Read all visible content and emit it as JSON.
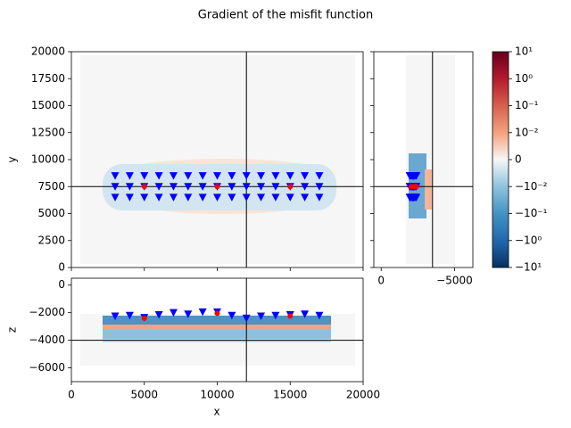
{
  "chart_data": [
    {
      "type": "scatter",
      "title": "Gradient of the misfit function",
      "ylabel": "y",
      "xlim": [
        0,
        20000
      ],
      "ylim": [
        0,
        20000
      ],
      "xticks": [
        0,
        5000,
        10000,
        15000,
        20000
      ],
      "yticks": [
        0,
        2500,
        5000,
        7500,
        10000,
        12500,
        15000,
        17500,
        20000
      ],
      "crosshair": {
        "x": 12000,
        "y": 7500
      },
      "series": [
        {
          "color": "#0000ff",
          "marker": "triangle-down",
          "x": [
            3000,
            4000,
            5000,
            6000,
            7000,
            8000,
            9000,
            10000,
            11000,
            12000,
            13000,
            14000,
            15000,
            16000,
            17000,
            3000,
            4000,
            5000,
            6000,
            7000,
            8000,
            9000,
            10000,
            11000,
            12000,
            13000,
            14000,
            15000,
            16000,
            17000,
            3000,
            4000,
            5000,
            6000,
            7000,
            8000,
            9000,
            10000,
            11000,
            12000,
            13000,
            14000,
            15000,
            16000,
            17000
          ],
          "y": [
            8500,
            8500,
            8500,
            8500,
            8500,
            8500,
            8500,
            8500,
            8500,
            8500,
            8500,
            8500,
            8500,
            8500,
            8500,
            7500,
            7500,
            7500,
            7500,
            7500,
            7500,
            7500,
            7500,
            7500,
            7500,
            7500,
            7500,
            7500,
            7500,
            7500,
            6500,
            6500,
            6500,
            6500,
            6500,
            6500,
            6500,
            6500,
            6500,
            6500,
            6500,
            6500,
            6500,
            6500,
            6500
          ]
        },
        {
          "color": "#ff0000",
          "marker": "circle",
          "x": [
            5000,
            10000,
            15000
          ],
          "y": [
            7500,
            7500,
            7500
          ]
        }
      ]
    },
    {
      "type": "scatter",
      "xlim": [
        500,
        -6250
      ],
      "ylim": [
        0,
        20000
      ],
      "xticks": [
        0,
        {
          "value": -5000,
          "label": "−5000"
        }
      ],
      "yticks": [
        0,
        2500,
        5000,
        7500,
        10000,
        12500,
        15000,
        17500,
        20000
      ],
      "crosshair": {
        "x": -3500,
        "y": 7500
      },
      "series": [
        {
          "color": "#0000ff",
          "marker": "triangle-down",
          "x": [
            -2250,
            -2200,
            -2350,
            -2150,
            -2000,
            -2100,
            -1950,
            -1950,
            -2200,
            -2400,
            -2250,
            -2200,
            -2150,
            -2100,
            -2200,
            -2250,
            -2200,
            -2350,
            -2150,
            -2000,
            -2100,
            -1950,
            -1950,
            -2200,
            -2400,
            -2250,
            -2200,
            -2150,
            -2100,
            -2200,
            -2250,
            -2200,
            -2350,
            -2150,
            -2000,
            -2100,
            -1950,
            -1950,
            -2200,
            -2400,
            -2250,
            -2200,
            -2150,
            -2100,
            -2200
          ],
          "y": [
            8500,
            8500,
            8500,
            8500,
            8500,
            8500,
            8500,
            8500,
            8500,
            8500,
            8500,
            8500,
            8500,
            8500,
            8500,
            7500,
            7500,
            7500,
            7500,
            7500,
            7500,
            7500,
            7500,
            7500,
            7500,
            7500,
            7500,
            7500,
            7500,
            7500,
            6500,
            6500,
            6500,
            6500,
            6500,
            6500,
            6500,
            6500,
            6500,
            6500,
            6500,
            6500,
            6500,
            6500,
            6500
          ]
        },
        {
          "color": "#ff0000",
          "marker": "circle",
          "x": [
            -2400,
            -2050,
            -2250
          ],
          "y": [
            7500,
            7500,
            7500
          ]
        }
      ]
    },
    {
      "type": "scatter",
      "xlabel": "x",
      "ylabel": "z",
      "xlim": [
        0,
        20000
      ],
      "ylim": [
        -7000,
        500
      ],
      "xticks": [
        0,
        5000,
        10000,
        15000,
        20000
      ],
      "yticks": [
        {
          "value": -6000,
          "label": "−6000"
        },
        {
          "value": -4000,
          "label": "−4000"
        },
        {
          "value": -2000,
          "label": "−2000"
        },
        0
      ],
      "crosshair": {
        "x": 12000,
        "y": -4000
      },
      "series": [
        {
          "color": "#0000ff",
          "marker": "triangle-down",
          "x": [
            3000,
            4000,
            5000,
            6000,
            7000,
            8000,
            9000,
            10000,
            11000,
            12000,
            13000,
            14000,
            15000,
            16000,
            17000
          ],
          "y": [
            -2250,
            -2200,
            -2350,
            -2150,
            -2000,
            -2100,
            -1950,
            -1950,
            -2200,
            -2400,
            -2250,
            -2200,
            -2150,
            -2100,
            -2200
          ]
        },
        {
          "color": "#ff0000",
          "marker": "circle",
          "x": [
            5000,
            10000,
            15000
          ],
          "y": [
            -2400,
            -2050,
            -2250
          ]
        }
      ]
    },
    {
      "type": "colorbar",
      "scale": "symlog",
      "linthresh": 0.01,
      "colormap": "RdBu_r",
      "lim": [
        -10,
        10
      ],
      "ticks": [
        {
          "value": 10,
          "label": "10¹"
        },
        {
          "value": 1,
          "label": "10⁰"
        },
        {
          "value": 0.1,
          "label": "10⁻¹"
        },
        {
          "value": 0.01,
          "label": "10⁻²"
        },
        0,
        {
          "value": -0.01,
          "label": "−10⁻²"
        },
        {
          "value": -0.1,
          "label": "−10⁻¹"
        },
        {
          "value": -1,
          "label": "−10⁰"
        },
        {
          "value": -10,
          "label": "−10¹"
        }
      ]
    }
  ]
}
